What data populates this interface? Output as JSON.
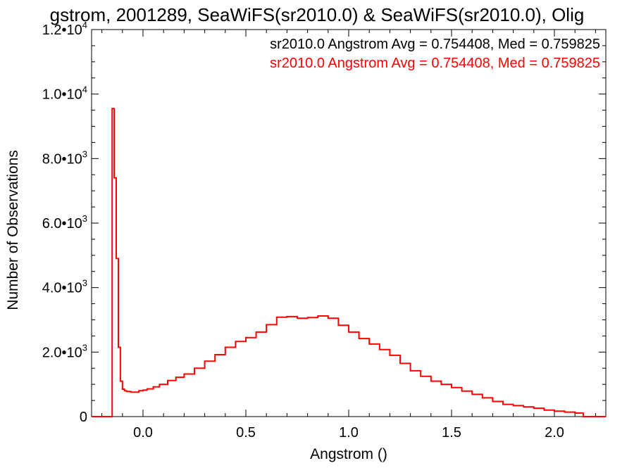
{
  "chart_data": {
    "type": "histogram",
    "title": "gstrom, 2001289, SeaWiFS(sr2010.0) & SeaWiFS(sr2010.0), Olig",
    "xlabel": "Angstrom ()",
    "ylabel": "Number of Observations",
    "xlim": [
      -0.25,
      2.25
    ],
    "ylim": [
      0,
      12000
    ],
    "x_ticks": [
      {
        "value": 0.0,
        "label": "0.0"
      },
      {
        "value": 0.5,
        "label": "0.5"
      },
      {
        "value": 1.0,
        "label": "1.0"
      },
      {
        "value": 1.5,
        "label": "1.5"
      },
      {
        "value": 2.0,
        "label": "2.0"
      }
    ],
    "y_ticks": [
      {
        "value": 0,
        "mantissa": "0",
        "exp": ""
      },
      {
        "value": 2000,
        "mantissa": "2.0•10",
        "exp": "3"
      },
      {
        "value": 4000,
        "mantissa": "4.0•10",
        "exp": "3"
      },
      {
        "value": 6000,
        "mantissa": "6.0•10",
        "exp": "3"
      },
      {
        "value": 8000,
        "mantissa": "8.0•10",
        "exp": "3"
      },
      {
        "value": 10000,
        "mantissa": "1.0•10",
        "exp": "4"
      },
      {
        "value": 12000,
        "mantissa": "1.2•10",
        "exp": "4"
      }
    ],
    "legend_placement": "top-right",
    "legend": [
      {
        "text": "sr2010.0 Angstrom Avg = 0.754408, Med = 0.759825",
        "color": "#000000"
      },
      {
        "text": "sr2010.0 Angstrom Avg = 0.754408, Med = 0.759825",
        "color": "#ff0000"
      }
    ],
    "series_color": "#ff0000",
    "series": [
      {
        "points": [
          [
            -0.25,
            0
          ],
          [
            -0.16,
            0
          ],
          [
            -0.15,
            9550
          ],
          [
            -0.14,
            7400
          ],
          [
            -0.13,
            4900
          ],
          [
            -0.12,
            2150
          ],
          [
            -0.11,
            1100
          ],
          [
            -0.1,
            850
          ],
          [
            -0.09,
            800
          ],
          [
            -0.08,
            780
          ],
          [
            -0.06,
            760
          ],
          [
            -0.04,
            760
          ],
          [
            -0.02,
            800
          ],
          [
            0.0,
            820
          ],
          [
            0.02,
            860
          ],
          [
            0.05,
            920
          ],
          [
            0.08,
            1000
          ],
          [
            0.12,
            1120
          ],
          [
            0.16,
            1220
          ],
          [
            0.2,
            1320
          ],
          [
            0.25,
            1500
          ],
          [
            0.3,
            1720
          ],
          [
            0.35,
            1920
          ],
          [
            0.4,
            2150
          ],
          [
            0.45,
            2330
          ],
          [
            0.5,
            2450
          ],
          [
            0.55,
            2620
          ],
          [
            0.6,
            2850
          ],
          [
            0.65,
            3080
          ],
          [
            0.7,
            3100
          ],
          [
            0.75,
            3050
          ],
          [
            0.8,
            3070
          ],
          [
            0.85,
            3120
          ],
          [
            0.9,
            3050
          ],
          [
            0.95,
            2830
          ],
          [
            1.0,
            2620
          ],
          [
            1.05,
            2420
          ],
          [
            1.1,
            2250
          ],
          [
            1.15,
            2080
          ],
          [
            1.2,
            1900
          ],
          [
            1.25,
            1650
          ],
          [
            1.3,
            1420
          ],
          [
            1.35,
            1250
          ],
          [
            1.4,
            1100
          ],
          [
            1.45,
            1000
          ],
          [
            1.5,
            900
          ],
          [
            1.55,
            790
          ],
          [
            1.6,
            690
          ],
          [
            1.65,
            580
          ],
          [
            1.7,
            470
          ],
          [
            1.75,
            380
          ],
          [
            1.8,
            340
          ],
          [
            1.85,
            300
          ],
          [
            1.9,
            260
          ],
          [
            1.95,
            200
          ],
          [
            2.0,
            170
          ],
          [
            2.05,
            140
          ],
          [
            2.1,
            110
          ],
          [
            2.14,
            0
          ],
          [
            2.25,
            0
          ]
        ]
      }
    ]
  }
}
